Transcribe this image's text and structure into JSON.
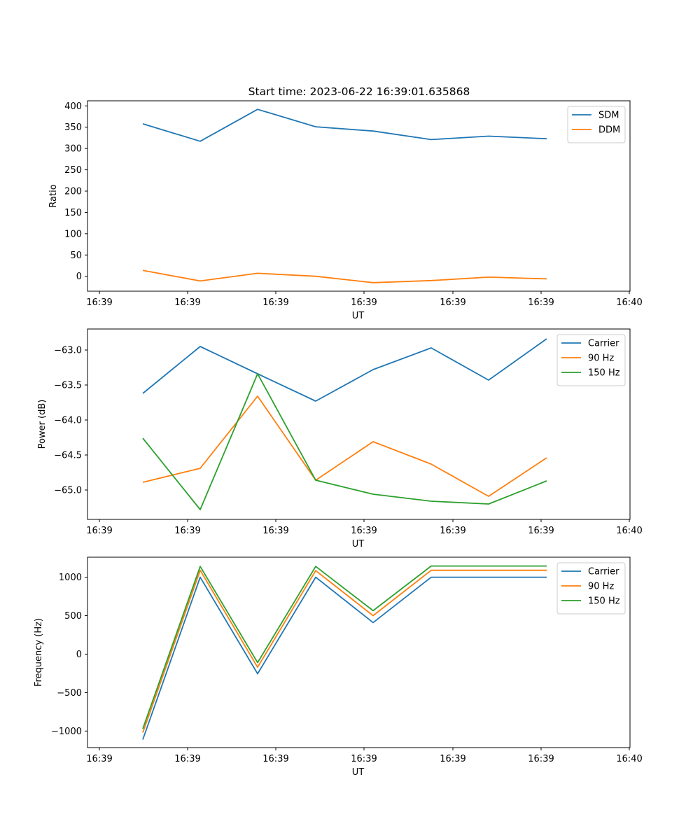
{
  "figure": {
    "title": "Start time: 2023-06-22 16:39:01.635868"
  },
  "chart_data": [
    {
      "type": "line",
      "xlabel": "UT",
      "ylabel": "Ratio",
      "x_tick_labels": [
        "16:39",
        "16:39",
        "16:39",
        "16:39",
        "16:39",
        "16:39",
        "16:40"
      ],
      "ylim": [
        -35,
        412
      ],
      "yticks": [
        0,
        50,
        100,
        150,
        200,
        250,
        300,
        350,
        400
      ],
      "legend_position": "top-right",
      "series": [
        {
          "name": "SDM",
          "color": "#1f77b4",
          "values": [
            358,
            317,
            392,
            351,
            341,
            321,
            329,
            323
          ]
        },
        {
          "name": "DDM",
          "color": "#ff7f0e",
          "values": [
            14,
            -11,
            7,
            0,
            -15,
            -10,
            -2,
            -6
          ]
        }
      ]
    },
    {
      "type": "line",
      "xlabel": "UT",
      "ylabel": "Power (dB)",
      "x_tick_labels": [
        "16:39",
        "16:39",
        "16:39",
        "16:39",
        "16:39",
        "16:39",
        "16:40"
      ],
      "ylim": [
        -65.42,
        -62.7
      ],
      "yticks": [
        -65.0,
        -64.5,
        -64.0,
        -63.5,
        -63.0
      ],
      "ytick_labels": [
        "−65.0",
        "−64.5",
        "−64.0",
        "−63.5",
        "−63.0"
      ],
      "legend_position": "top-right",
      "series": [
        {
          "name": "Carrier",
          "color": "#1f77b4",
          "values": [
            -63.62,
            -62.95,
            -63.34,
            -63.73,
            -63.28,
            -62.97,
            -63.43,
            -62.84
          ]
        },
        {
          "name": "90 Hz",
          "color": "#ff7f0e",
          "values": [
            -64.89,
            -64.69,
            -63.66,
            -64.86,
            -64.31,
            -64.63,
            -65.09,
            -64.54
          ]
        },
        {
          "name": "150 Hz",
          "color": "#2ca02c",
          "values": [
            -64.26,
            -65.28,
            -63.34,
            -64.86,
            -65.06,
            -65.16,
            -65.2,
            -64.87
          ]
        }
      ]
    },
    {
      "type": "line",
      "xlabel": "UT",
      "ylabel": "Frequency (Hz)",
      "x_tick_labels": [
        "16:39",
        "16:39",
        "16:39",
        "16:39",
        "16:39",
        "16:39",
        "16:40"
      ],
      "ylim": [
        -1215,
        1260
      ],
      "yticks": [
        -1000,
        -500,
        0,
        500,
        1000
      ],
      "ytick_labels": [
        "−1000",
        "−500",
        "0",
        "500",
        "1000"
      ],
      "legend_position": "top-right",
      "series": [
        {
          "name": "Carrier",
          "color": "#1f77b4",
          "values": [
            -1110,
            1000,
            -255,
            1000,
            410,
            1000,
            1000,
            1000
          ]
        },
        {
          "name": "90 Hz",
          "color": "#ff7f0e",
          "values": [
            -1020,
            1090,
            -170,
            1085,
            500,
            1090,
            1090,
            1090
          ]
        },
        {
          "name": "150 Hz",
          "color": "#2ca02c",
          "values": [
            -970,
            1140,
            -110,
            1140,
            565,
            1145,
            1145,
            1145
          ]
        }
      ]
    }
  ]
}
